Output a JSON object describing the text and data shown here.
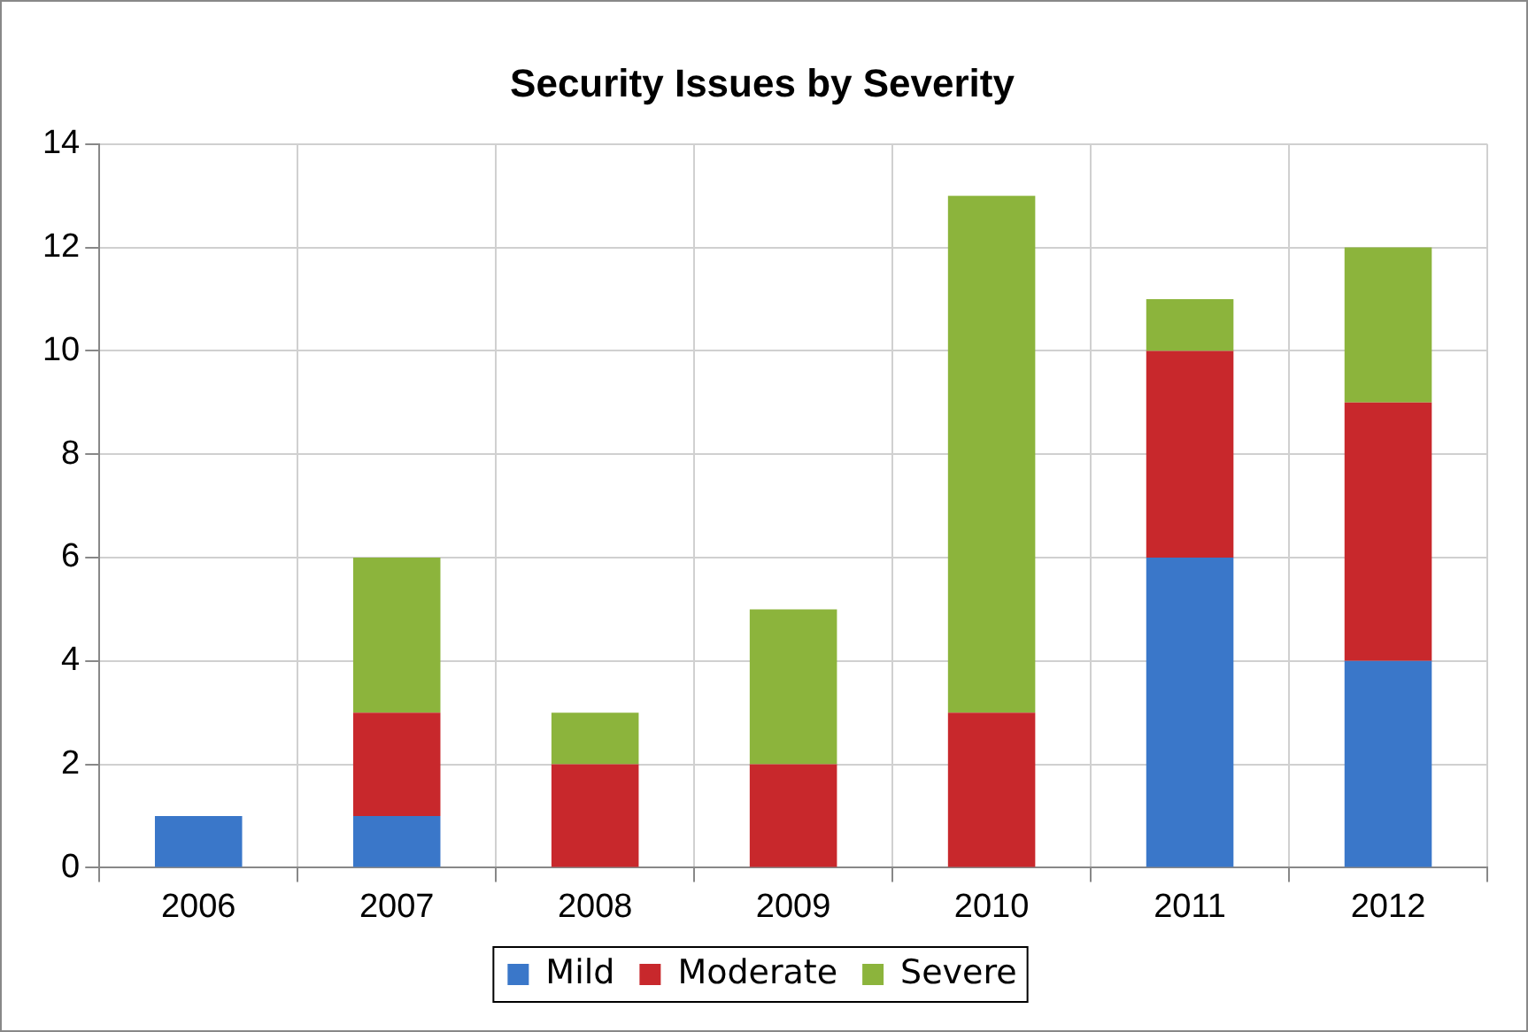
{
  "chart_data": {
    "type": "bar",
    "title": "Security Issues by Severity",
    "categories": [
      "2006",
      "2007",
      "2008",
      "2009",
      "2010",
      "2011",
      "2012"
    ],
    "stacked": true,
    "series": [
      {
        "name": "Mild",
        "color": "#3a77c9",
        "values": [
          1,
          1,
          0,
          0,
          0,
          6,
          4
        ]
      },
      {
        "name": "Moderate",
        "color": "#c8282c",
        "values": [
          0,
          2,
          2,
          2,
          3,
          4,
          5
        ]
      },
      {
        "name": "Severe",
        "color": "#8cb43c",
        "values": [
          0,
          3,
          1,
          3,
          10,
          1,
          3
        ]
      }
    ],
    "ylim": [
      0,
      14
    ],
    "yticks": [
      0,
      2,
      4,
      6,
      8,
      10,
      12,
      14
    ],
    "grid": true,
    "legend": "bottom"
  }
}
